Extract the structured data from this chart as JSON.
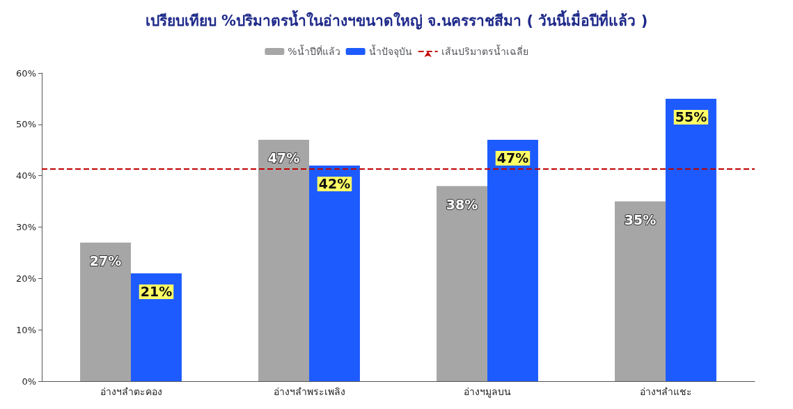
{
  "chart_data": {
    "type": "bar",
    "title": "เปรียบเทียบ %ปริมาตรน้ำในอ่างฯขนาดใหญ่ จ.นครราชสีมา ( วันนี้เมื่อปีที่แล้ว )",
    "categories": [
      "อ่างฯลำตะคอง",
      "อ่างฯลำพระเพลิง",
      "อ่างฯมูลบน",
      "อ่างฯลำแชะ"
    ],
    "series": [
      {
        "name": "%น้ำปีที่แล้ว",
        "color": "#a6a6a6",
        "values": [
          27,
          47,
          38,
          35
        ],
        "value_labels": [
          "27%",
          "47%",
          "38%",
          "35%"
        ]
      },
      {
        "name": "น้ำปัจจุบัน",
        "color": "#1e5bff",
        "values": [
          21,
          42,
          47,
          55
        ],
        "value_labels": [
          "21%",
          "42%",
          "47%",
          "55%"
        ]
      }
    ],
    "ref_lines": [
      {
        "axis": "y",
        "value": 41.3,
        "label": "เส้นปริมาตรน้ำเฉลี่ย",
        "color": "#c00000",
        "line_style": "dashed"
      }
    ],
    "ylim": [
      0,
      60
    ],
    "yticks": [
      {
        "value": 0,
        "label": "0%"
      },
      {
        "value": 10,
        "label": "10%"
      },
      {
        "value": 20,
        "label": "20%"
      },
      {
        "value": 30,
        "label": "30%"
      },
      {
        "value": 40,
        "label": "40%"
      },
      {
        "value": 50,
        "label": "50%"
      },
      {
        "value": 60,
        "label": "60%"
      }
    ],
    "grid": false,
    "legend": "top"
  }
}
